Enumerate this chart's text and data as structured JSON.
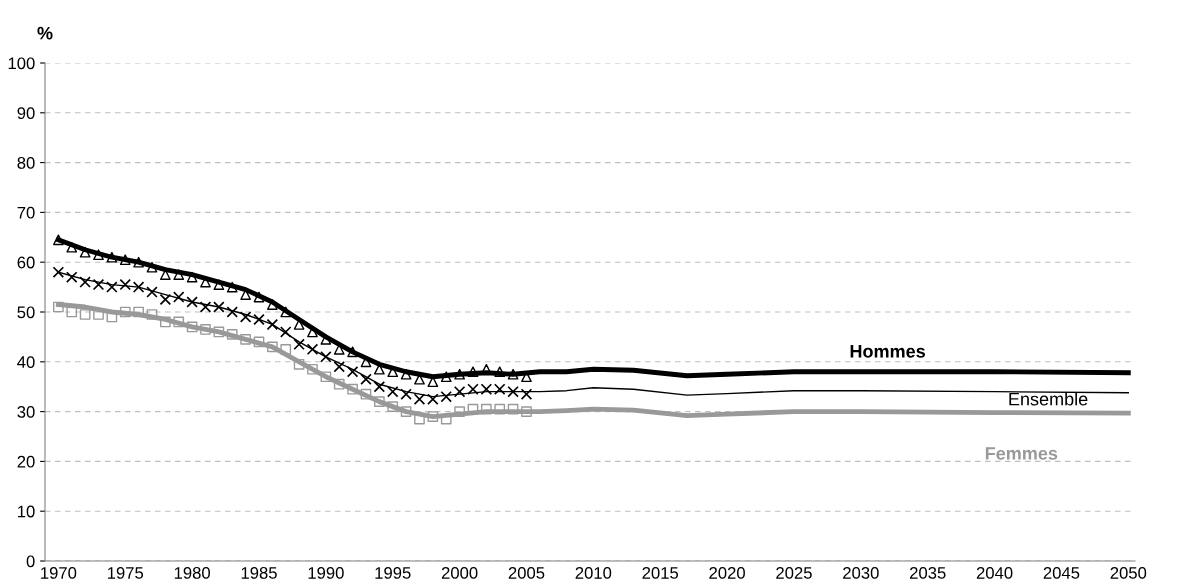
{
  "chart_data": {
    "type": "line",
    "ylabel": "%",
    "xlim": [
      1969,
      2050.5
    ],
    "xticks": [
      1970,
      1975,
      1980,
      1985,
      1990,
      1995,
      2000,
      2005,
      2010,
      2015,
      2020,
      2025,
      2030,
      2035,
      2040,
      2045,
      2050
    ],
    "ylim": [
      0,
      100
    ],
    "yticks": [
      0,
      10,
      20,
      30,
      40,
      50,
      60,
      70,
      80,
      90,
      100
    ],
    "grid": "y",
    "legend": false,
    "series": [
      {
        "name": "Hommes",
        "color": "#000000",
        "line_style": "solid",
        "marker": "none",
        "x": [
          1970,
          1972,
          1974,
          1976,
          1978,
          1980,
          1982,
          1984,
          1986,
          1988,
          1990,
          1992,
          1994,
          1996,
          1998,
          2000,
          2002,
          2004,
          2006,
          2008,
          2010,
          2013,
          2017,
          2020,
          2025,
          2030,
          2040,
          2050
        ],
        "values": [
          64.5,
          62.5,
          61,
          60,
          58.5,
          57.5,
          56,
          54.5,
          52,
          48.5,
          45,
          42,
          39.5,
          38,
          37,
          37.5,
          37.8,
          37.5,
          38,
          38,
          38.5,
          38.3,
          37.2,
          37.5,
          38,
          38,
          38,
          37.8
        ]
      },
      {
        "name": "Ensemble",
        "color": "#000000",
        "line_style": "solid",
        "marker": "none",
        "x": [
          1970,
          1972,
          1974,
          1976,
          1978,
          1980,
          1982,
          1984,
          1986,
          1988,
          1990,
          1992,
          1994,
          1996,
          1998,
          2000,
          2002,
          2004,
          2006,
          2008,
          2010,
          2013,
          2017,
          2020,
          2025,
          2030,
          2040,
          2050
        ],
        "values": [
          58,
          56.5,
          55.5,
          55,
          53.5,
          52,
          51,
          49.5,
          47.5,
          44,
          41,
          38.5,
          35.5,
          34,
          33,
          33.5,
          34,
          34,
          34,
          34.2,
          34.8,
          34.5,
          33.3,
          33.6,
          34.2,
          34.2,
          34,
          33.8
        ]
      },
      {
        "name": "Femmes",
        "color": "#999999",
        "line_style": "solid",
        "marker": "none",
        "x": [
          1970,
          1972,
          1974,
          1976,
          1978,
          1980,
          1982,
          1984,
          1986,
          1988,
          1990,
          1992,
          1994,
          1996,
          1998,
          2000,
          2002,
          2004,
          2006,
          2008,
          2010,
          2013,
          2017,
          2020,
          2025,
          2030,
          2040,
          2050
        ],
        "values": [
          51.5,
          51,
          50,
          49.5,
          48.5,
          47,
          46,
          44.5,
          43,
          40,
          37,
          34.5,
          32,
          30,
          29,
          29.5,
          30,
          30,
          30,
          30.2,
          30.5,
          30.3,
          29.2,
          29.5,
          30,
          30,
          29.8,
          29.7
        ]
      },
      {
        "type": "scatter",
        "color": "#000000",
        "marker": "triangle",
        "x": [
          1970,
          1971,
          1972,
          1973,
          1974,
          1975,
          1976,
          1977,
          1978,
          1979,
          1980,
          1981,
          1982,
          1983,
          1984,
          1985,
          1986,
          1987,
          1988,
          1989,
          1990,
          1991,
          1992,
          1993,
          1994,
          1995,
          1996,
          1997,
          1998,
          1999,
          2000,
          2001,
          2002,
          2003,
          2004,
          2005
        ],
        "values": [
          64.5,
          63,
          62,
          61.5,
          61,
          60.5,
          60,
          59,
          57.5,
          57.5,
          57,
          56,
          55.5,
          55,
          53.5,
          53,
          51.5,
          50,
          47.5,
          46,
          44.5,
          42.5,
          42,
          40,
          38.5,
          38,
          37.5,
          36.5,
          36,
          37,
          37.5,
          38,
          38.5,
          38,
          37.5,
          37
        ]
      },
      {
        "type": "scatter",
        "color": "#000000",
        "marker": "cross",
        "x": [
          1970,
          1971,
          1972,
          1973,
          1974,
          1975,
          1976,
          1977,
          1978,
          1979,
          1980,
          1981,
          1982,
          1983,
          1984,
          1985,
          1986,
          1987,
          1988,
          1989,
          1990,
          1991,
          1992,
          1993,
          1994,
          1995,
          1996,
          1997,
          1998,
          1999,
          2000,
          2001,
          2002,
          2003,
          2004,
          2005
        ],
        "values": [
          58,
          57,
          56,
          55.5,
          55,
          55.5,
          55,
          54,
          52.5,
          53,
          52,
          51,
          51,
          50,
          49,
          48.5,
          47.5,
          46,
          43.5,
          42.5,
          41,
          39,
          38,
          36.5,
          35,
          34,
          33.5,
          32.5,
          32.5,
          33,
          34,
          34.5,
          34.5,
          34.5,
          34,
          33.5
        ]
      },
      {
        "type": "scatter",
        "color": "#999999",
        "marker": "square",
        "x": [
          1970,
          1971,
          1972,
          1973,
          1974,
          1975,
          1976,
          1977,
          1978,
          1979,
          1980,
          1981,
          1982,
          1983,
          1984,
          1985,
          1986,
          1987,
          1988,
          1989,
          1990,
          1991,
          1992,
          1993,
          1994,
          1995,
          1996,
          1997,
          1998,
          1999,
          2000,
          2001,
          2002,
          2003,
          2004,
          2005
        ],
        "values": [
          51,
          50,
          49.5,
          49.5,
          49,
          50,
          50,
          49.5,
          48,
          48,
          47,
          46.5,
          46,
          45.5,
          44.5,
          44,
          43,
          42.5,
          39.5,
          38.5,
          37,
          35.5,
          34.5,
          33.5,
          32,
          31,
          30,
          28.5,
          29,
          28.5,
          30,
          30.5,
          30.5,
          30.5,
          30.5,
          30
        ]
      }
    ]
  }
}
